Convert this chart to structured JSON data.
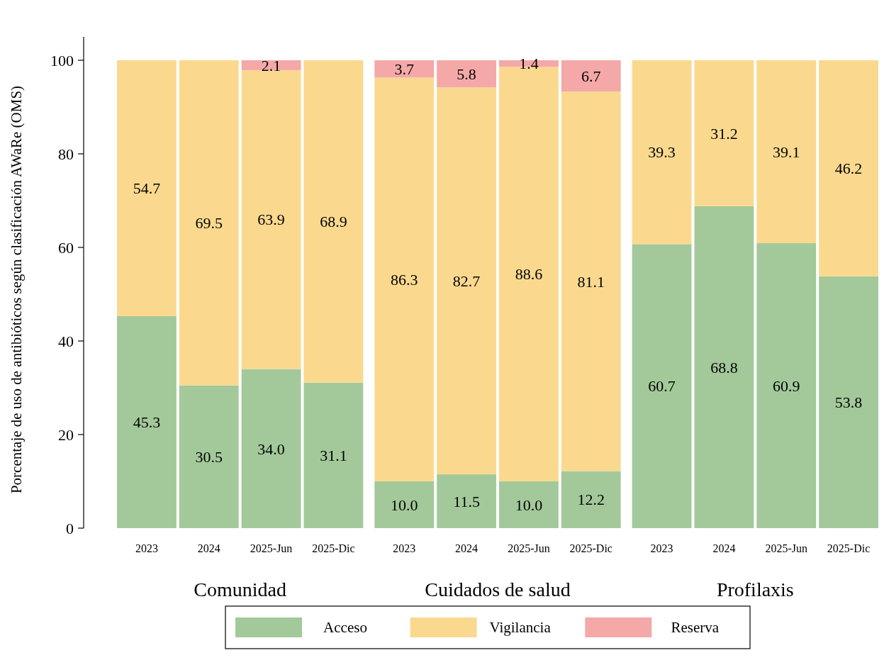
{
  "chart_data": {
    "type": "bar",
    "stacked": true,
    "ylabel": "Porcentaje de uso de antibióticos según clasificación AWaRe (OMS)",
    "categories": [
      "2023",
      "2024",
      "2025-Jun",
      "2025-Dic",
      "2023",
      "2024",
      "2025-Jun",
      "2025-Dic",
      "2023",
      "2024",
      "2025-Jun",
      "2025-Dic"
    ],
    "annotations": [
      "Comunidad",
      "Cuidados de salud",
      "Profilaxis"
    ],
    "series": [
      {
        "name": "Acceso",
        "color": "#a3c99a",
        "values": [
          45.3,
          30.5,
          34.0,
          31.1,
          10.0,
          11.5,
          10.0,
          12.2,
          60.7,
          68.8,
          60.9,
          53.8
        ],
        "value_labels": [
          "45.3",
          "30.5",
          "34.0",
          "31.1",
          "10.0",
          "11.5",
          "10.0",
          "12.2",
          "60.7",
          "68.8",
          "60.9",
          "53.8"
        ]
      },
      {
        "name": "Vigilancia",
        "color": "#fad98f",
        "values": [
          54.7,
          69.5,
          63.9,
          68.9,
          86.3,
          82.7,
          88.6,
          81.1,
          39.3,
          31.2,
          39.1,
          46.2
        ],
        "value_labels": [
          "54.7",
          "69.5",
          "63.9",
          "68.9",
          "86.3",
          "82.7",
          "88.6",
          "81.1",
          "39.3",
          "31.2",
          "39.1",
          "46.2"
        ]
      },
      {
        "name": "Reserva",
        "color": "#f4a8a8",
        "values": [
          0,
          0,
          2.1,
          0,
          3.7,
          5.8,
          1.4,
          6.7,
          0,
          0,
          0,
          0
        ],
        "value_labels": [
          null,
          null,
          "2.1",
          null,
          "3.7",
          "5.8",
          "1.4",
          "6.7",
          null,
          null,
          null,
          null
        ]
      }
    ],
    "ylim": [
      0,
      105
    ],
    "yticks": [
      0,
      20,
      40,
      60,
      80,
      100
    ],
    "grid": false,
    "legend": "bottom"
  }
}
